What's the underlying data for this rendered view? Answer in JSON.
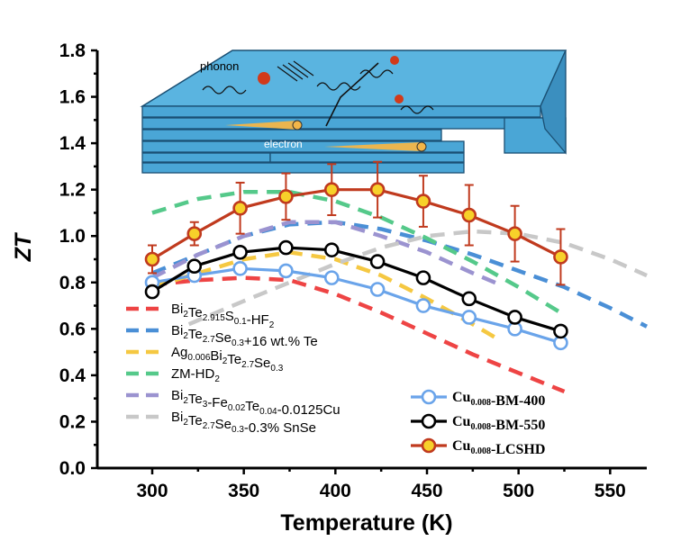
{
  "chart_data": {
    "type": "line",
    "xlabel": "Temperature (K)",
    "ylabel": "ZT",
    "xlim": [
      270,
      570
    ],
    "ylim": [
      0.0,
      1.8
    ],
    "xticks": [
      300,
      350,
      400,
      450,
      500,
      550
    ],
    "yticks": [
      0.0,
      0.2,
      0.4,
      0.6,
      0.8,
      1.0,
      1.2,
      1.4,
      1.6,
      1.8
    ],
    "grid": false,
    "legend_left": [
      {
        "label": "Bi2Te2.915S0.1-HF2",
        "color": "#ee4444"
      },
      {
        "label": "Bi2Te2.7Se0.3+16 wt.% Te",
        "color": "#4a8fd6"
      },
      {
        "label": "Ag0.006Bi2Te2.7Se0.3",
        "color": "#f5c842"
      },
      {
        "label": "ZM-HD2",
        "color": "#55c98a"
      },
      {
        "label": "Bi2Te3-Fe0.02Te0.04-0.0125Cu",
        "color": "#9b93d0"
      },
      {
        "label": "Bi2Te2.7Se0.3-0.3% SnSe",
        "color": "#c8c8c8"
      }
    ],
    "reference_series": [
      {
        "name": "Bi2Te2.915S0.1-HF2",
        "color": "#ee4444",
        "x": [
          300,
          325,
          350,
          375,
          400,
          425,
          450,
          475,
          500,
          525
        ],
        "y": [
          0.79,
          0.81,
          0.82,
          0.81,
          0.75,
          0.67,
          0.58,
          0.49,
          0.41,
          0.33
        ]
      },
      {
        "name": "Bi2Te2.7Se0.3+16 wt.% Te",
        "color": "#4a8fd6",
        "x": [
          300,
          325,
          350,
          375,
          400,
          425,
          450,
          475,
          500,
          525,
          550,
          570
        ],
        "y": [
          0.84,
          0.92,
          1.0,
          1.05,
          1.06,
          1.03,
          0.98,
          0.92,
          0.85,
          0.78,
          0.69,
          0.61
        ]
      },
      {
        "name": "Ag0.006Bi2Te2.7Se0.3",
        "color": "#f5c842",
        "x": [
          300,
          325,
          350,
          375,
          400,
          425,
          450,
          475,
          490
        ],
        "y": [
          0.78,
          0.84,
          0.9,
          0.93,
          0.9,
          0.83,
          0.73,
          0.62,
          0.55
        ]
      },
      {
        "name": "ZM-HD2",
        "color": "#55c98a",
        "x": [
          300,
          325,
          350,
          375,
          400,
          425,
          450,
          475,
          500,
          525
        ],
        "y": [
          1.1,
          1.16,
          1.19,
          1.19,
          1.15,
          1.08,
          0.99,
          0.89,
          0.78,
          0.66
        ]
      },
      {
        "name": "Bi2Te3-Fe0.02Te0.04-0.0125Cu",
        "color": "#9b93d0",
        "x": [
          300,
          325,
          350,
          375,
          400,
          425,
          450,
          475,
          490
        ],
        "y": [
          0.82,
          0.92,
          1.0,
          1.06,
          1.06,
          1.0,
          0.93,
          0.84,
          0.79
        ]
      },
      {
        "name": "Bi2Te2.7Se0.3-0.3% SnSe",
        "color": "#c8c8c8",
        "x": [
          320,
          350,
          375,
          400,
          425,
          450,
          475,
          500,
          525,
          550,
          570
        ],
        "y": [
          0.62,
          0.72,
          0.8,
          0.88,
          0.95,
          1.0,
          1.02,
          1.01,
          0.97,
          0.9,
          0.83
        ]
      }
    ],
    "series": [
      {
        "name": "Cu0.008-BM-400",
        "color": "#6aa4ea",
        "marker": "open-circle",
        "x": [
          300,
          323,
          348,
          373,
          398,
          423,
          448,
          473,
          498,
          523
        ],
        "y": [
          0.8,
          0.83,
          0.86,
          0.85,
          0.82,
          0.77,
          0.7,
          0.65,
          0.6,
          0.54
        ]
      },
      {
        "name": "Cu0.008-BM-550",
        "color": "#000000",
        "marker": "open-circle",
        "x": [
          300,
          323,
          348,
          373,
          398,
          423,
          448,
          473,
          498,
          523
        ],
        "y": [
          0.76,
          0.87,
          0.93,
          0.95,
          0.94,
          0.89,
          0.82,
          0.73,
          0.65,
          0.59
        ]
      },
      {
        "name": "Cu0.008-LCSHD",
        "color": "#c03a1e",
        "marker": "filled-circle",
        "marker_fill": "#f7d12a",
        "x": [
          300,
          323,
          348,
          373,
          398,
          423,
          448,
          473,
          498,
          523
        ],
        "y": [
          0.9,
          1.01,
          1.12,
          1.17,
          1.2,
          1.2,
          1.15,
          1.09,
          1.01,
          0.91
        ],
        "err": [
          0.06,
          0.05,
          0.11,
          0.1,
          0.11,
          0.12,
          0.11,
          0.13,
          0.12,
          0.12
        ]
      }
    ],
    "inset": {
      "label_top": "phonon",
      "label_bottom": "electron"
    }
  }
}
